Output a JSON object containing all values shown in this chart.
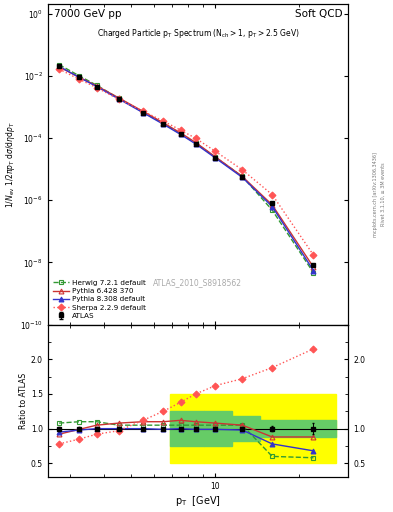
{
  "title_top_left": "7000 GeV pp",
  "title_top_right": "Soft QCD",
  "ylabel_main": "1/N_{ev} 1/2πp_{T} dσ/dηdp_{T}",
  "ylabel_ratio": "Ratio to ATLAS",
  "xlabel": "p_{T}  [GeV]",
  "watermark": "ATLAS_2010_S8918562",
  "right_label": "Rivet 3.1.10, ≥ 3M events",
  "right_label2": "mcplots.cern.ch [arXiv:1306.3436]",
  "xlim": [
    2.5,
    30
  ],
  "ylim_main": [
    1e-10,
    2
  ],
  "atlas_pt": [
    2.75,
    3.25,
    3.75,
    4.5,
    5.5,
    6.5,
    7.5,
    8.5,
    10.0,
    12.5,
    16.0,
    22.5
  ],
  "atlas_val": [
    0.021,
    0.009,
    0.0045,
    0.0018,
    0.00065,
    0.00028,
    0.00013,
    6.5e-05,
    2.3e-05,
    5.5e-06,
    8e-07,
    8e-09
  ],
  "atlas_err": [
    0.0005,
    0.0002,
    0.0001,
    4e-05,
    1.5e-05,
    6e-06,
    3e-06,
    1.5e-06,
    6e-07,
    1.5e-07,
    2.5e-08,
    3e-10
  ],
  "herwig_pt": [
    2.75,
    3.25,
    3.75,
    4.5,
    5.5,
    6.5,
    7.5,
    8.5,
    10.0,
    12.5,
    16.0,
    22.5
  ],
  "herwig_val": [
    0.0227,
    0.0099,
    0.00495,
    0.00189,
    0.000683,
    0.000294,
    0.0001365,
    6.825e-05,
    2.415e-05,
    5.775e-06,
    4.8e-07,
    4.64e-09
  ],
  "herwig_ratio": [
    1.08,
    1.1,
    1.1,
    1.05,
    1.05,
    1.05,
    1.05,
    1.05,
    1.05,
    1.05,
    0.6,
    0.58
  ],
  "pythia6_pt": [
    2.75,
    3.25,
    3.75,
    4.5,
    5.5,
    6.5,
    7.5,
    8.5,
    10.0,
    12.5,
    16.0,
    22.5
  ],
  "pythia6_val": [
    0.01932,
    0.00891,
    0.004725,
    0.001944,
    0.000715,
    0.000308,
    0.0001456,
    7.15e-05,
    2.484e-05,
    5.775e-06,
    7.04e-07,
    7.04e-09
  ],
  "pythia6_ratio": [
    0.92,
    0.99,
    1.05,
    1.08,
    1.1,
    1.1,
    1.12,
    1.1,
    1.08,
    1.05,
    0.88,
    0.88
  ],
  "pythia8_pt": [
    2.75,
    3.25,
    3.75,
    4.5,
    5.5,
    6.5,
    7.5,
    8.5,
    10.0,
    12.5,
    16.0,
    22.5
  ],
  "pythia8_val": [
    0.01995,
    0.00882,
    0.0045,
    0.0018,
    0.00065,
    0.0002772,
    0.00013,
    6.435e-05,
    2.277e-05,
    5.39e-06,
    6.24e-07,
    5.44e-09
  ],
  "pythia8_ratio": [
    0.95,
    0.98,
    1.0,
    1.0,
    1.0,
    0.99,
    1.0,
    0.99,
    0.99,
    0.98,
    0.78,
    0.68
  ],
  "sherpa_pt": [
    2.75,
    3.25,
    3.75,
    4.5,
    5.5,
    6.5,
    7.5,
    8.5,
    10.0,
    12.5,
    16.0,
    22.5
  ],
  "sherpa_val": [
    0.01638,
    0.00765,
    0.00414,
    0.001746,
    0.000728,
    0.00035,
    0.0001794,
    9.75e-05,
    3.726e-05,
    9.46e-06,
    1.504e-06,
    1.72e-08
  ],
  "sherpa_ratio": [
    0.78,
    0.85,
    0.92,
    0.97,
    1.12,
    1.25,
    1.38,
    1.5,
    1.62,
    1.72,
    1.88,
    2.15
  ],
  "color_atlas": "#000000",
  "color_herwig": "#339933",
  "color_pythia6": "#cc3333",
  "color_pythia8": "#3333cc",
  "color_sherpa": "#ff5555",
  "color_yellow_band": "#ffff00",
  "color_green_band": "#66cc66",
  "bg_color": "#ffffff"
}
